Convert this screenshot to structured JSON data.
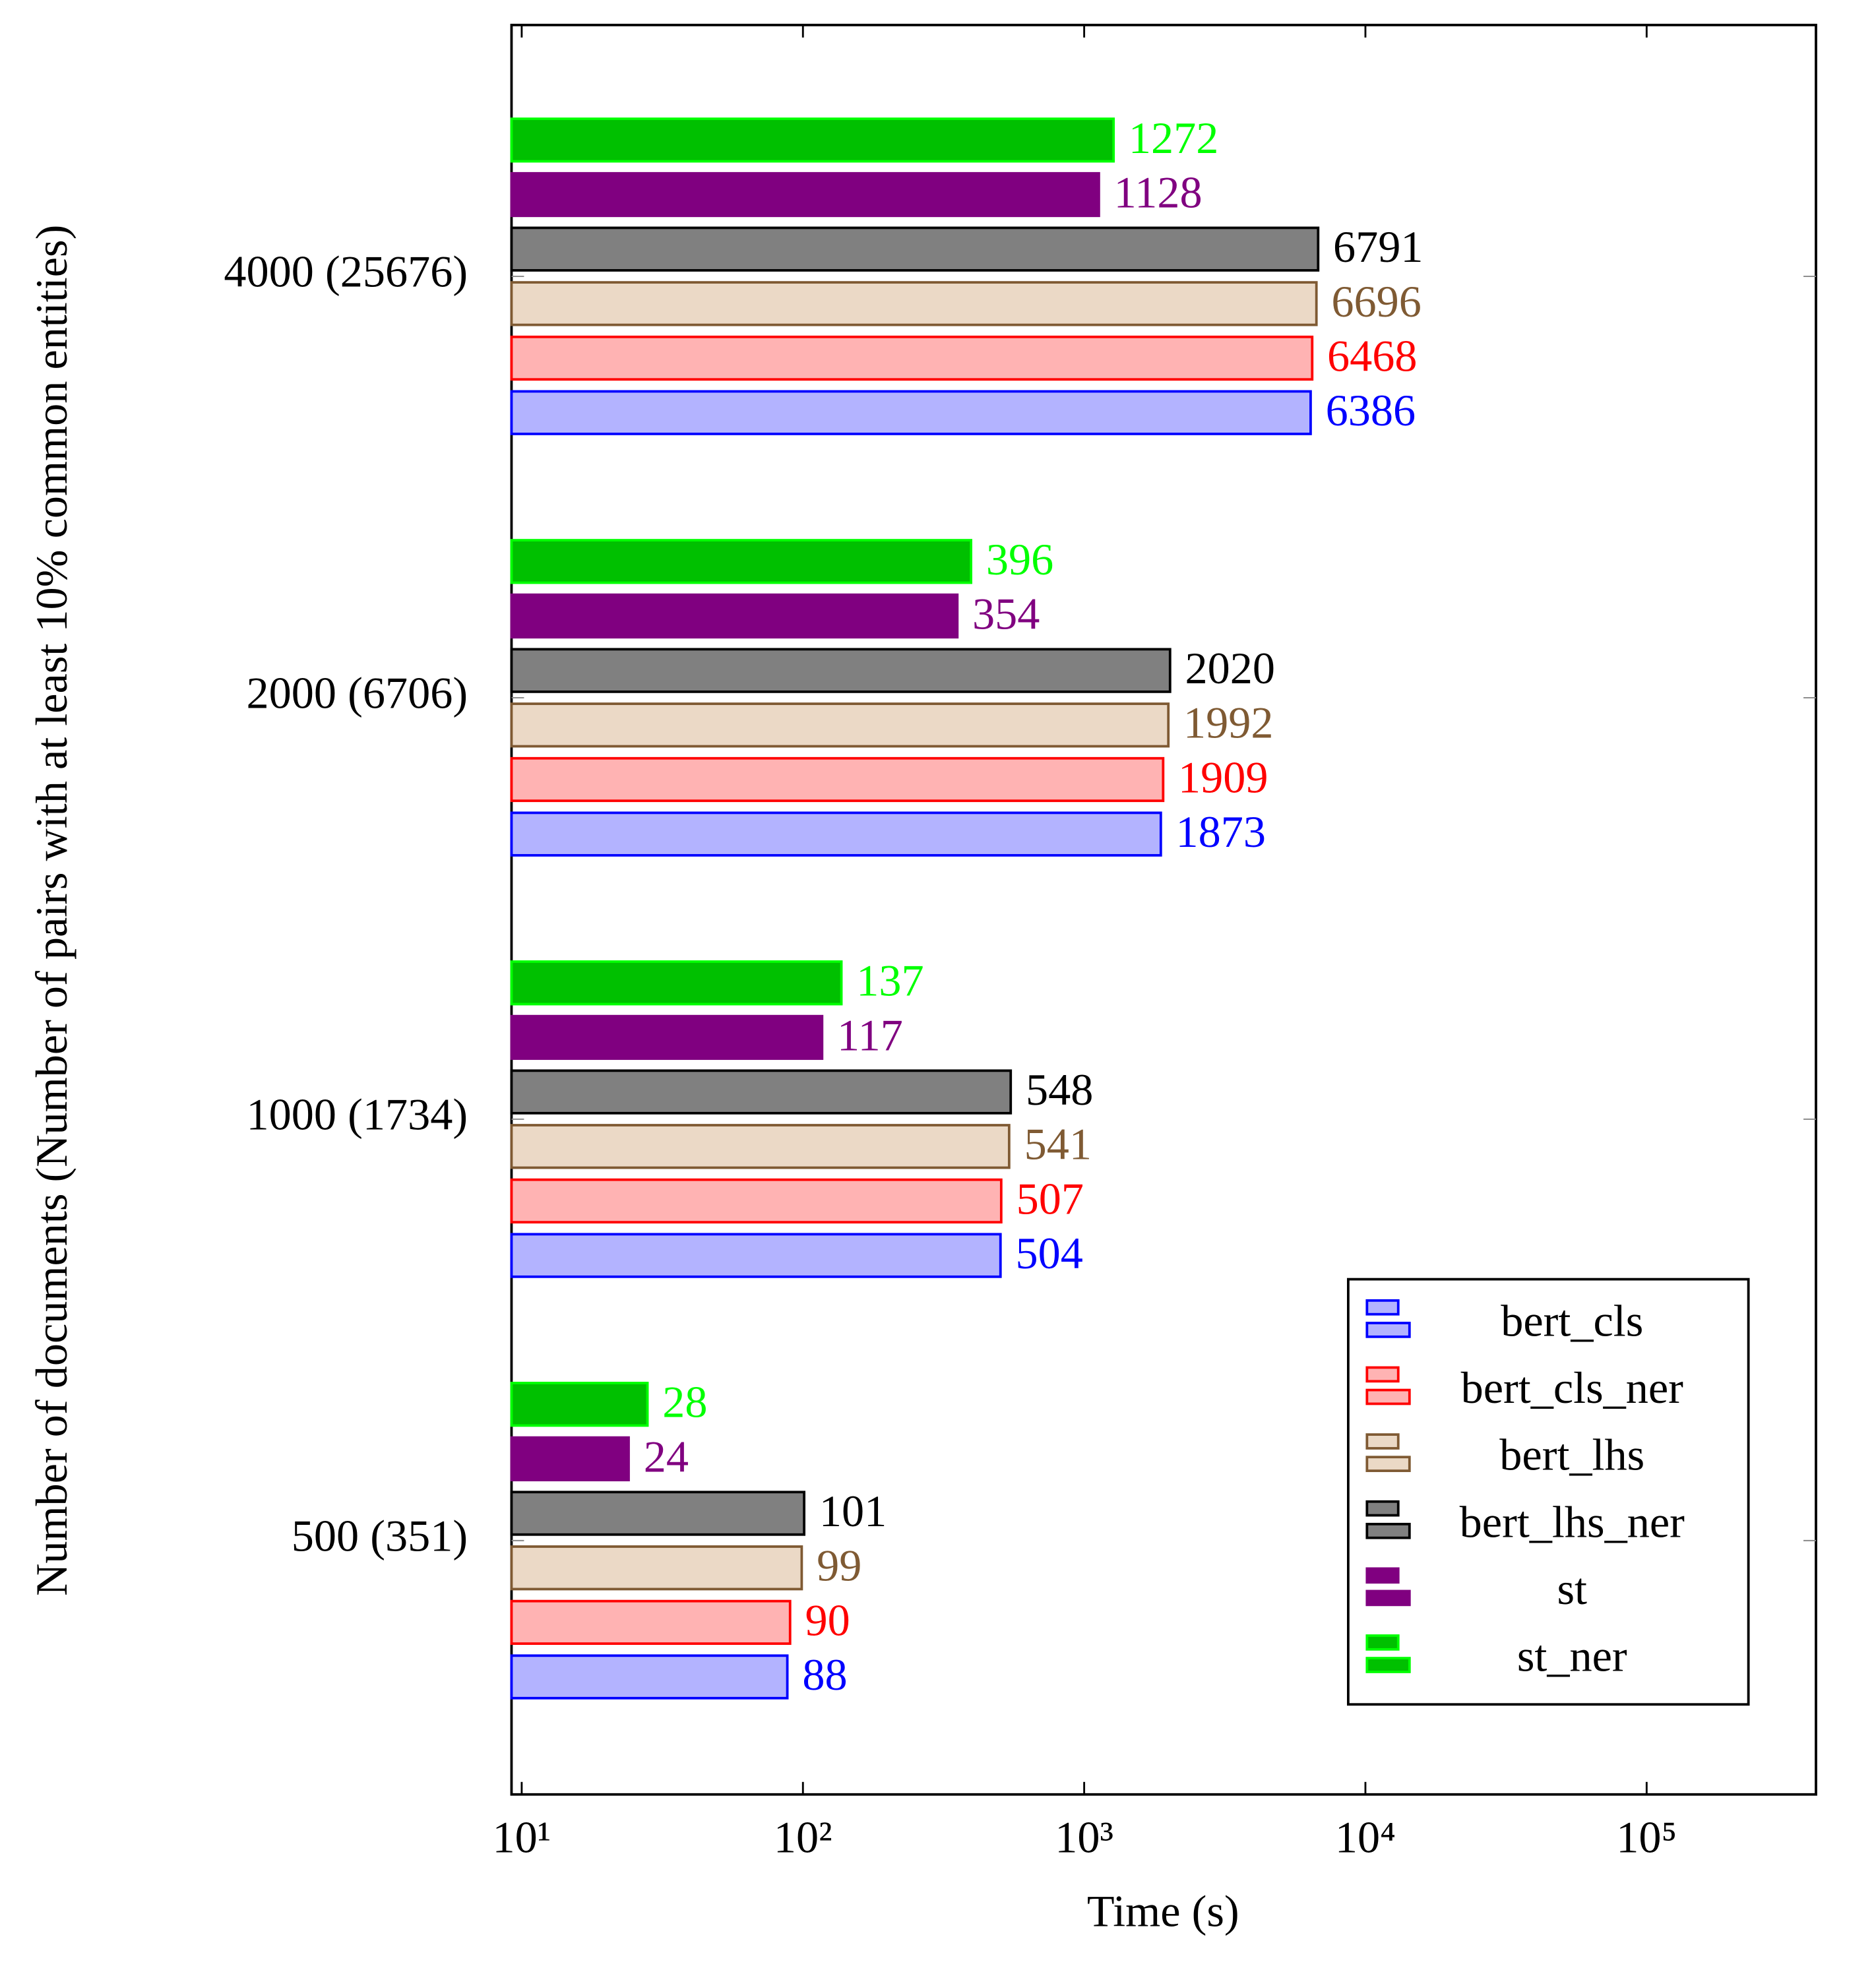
{
  "chart_data": {
    "type": "barh",
    "xlabel": "Time (s)",
    "ylabel": "Number of documents (Number of pairs with at least 10% common entities)",
    "categories": [
      "4000 (25676)",
      "2000 (6706)",
      "1000 (1734)",
      "500 (351)"
    ],
    "xscale": "log",
    "xlim": [
      9.2,
      400000
    ],
    "xticks": [
      {
        "value": 10,
        "label": "10¹"
      },
      {
        "value": 100,
        "label": "10²"
      },
      {
        "value": 1000,
        "label": "10³"
      },
      {
        "value": 10000,
        "label": "10⁴"
      },
      {
        "value": 100000,
        "label": "10⁵"
      }
    ],
    "legend": "lower right",
    "series": [
      {
        "name": "bert_cls",
        "color": "#b3b3ff",
        "edge": "#0000ff",
        "values": [
          6386,
          1873,
          504,
          88
        ]
      },
      {
        "name": "bert_cls_ner",
        "color": "#ffb3b3",
        "edge": "#ff0000",
        "values": [
          6468,
          1909,
          507,
          90
        ]
      },
      {
        "name": "bert_lhs",
        "color": "#ebd9c6",
        "edge": "#7f5a33",
        "values": [
          6696,
          1992,
          541,
          99
        ]
      },
      {
        "name": "bert_lhs_ner",
        "color": "#808080",
        "edge": "#000000",
        "values": [
          6791,
          2020,
          548,
          101
        ]
      },
      {
        "name": "st",
        "color": "#800080",
        "edge": "#800080",
        "values": [
          1128,
          354,
          117,
          24
        ]
      },
      {
        "name": "st_ner",
        "color": "#00c000",
        "edge": "#00ff00",
        "values": [
          1272,
          396,
          137,
          28
        ]
      }
    ]
  }
}
